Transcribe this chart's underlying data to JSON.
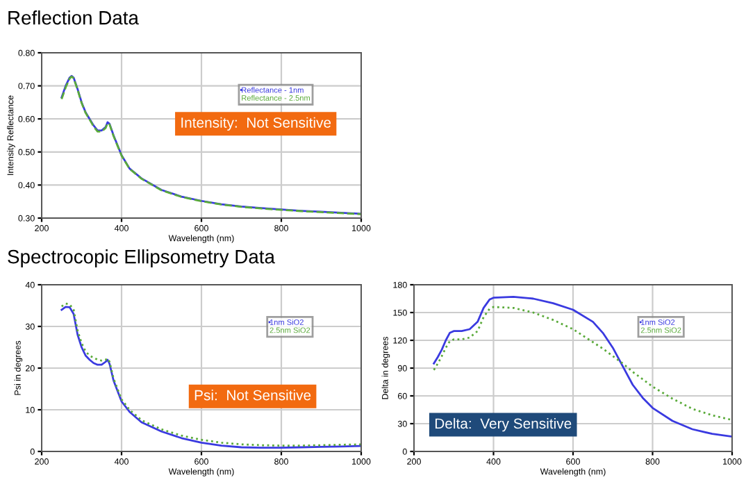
{
  "chart_data": [
    {
      "type": "line",
      "title": "Reflection Data",
      "xlabel": "Wavelength (nm)",
      "ylabel": "Intensity Reflectance",
      "x": [
        250,
        260,
        270,
        275,
        280,
        290,
        300,
        310,
        320,
        330,
        340,
        350,
        360,
        365,
        370,
        380,
        400,
        420,
        450,
        500,
        550,
        600,
        650,
        700,
        750,
        800,
        850,
        900,
        950,
        1000
      ],
      "series": [
        {
          "name": "Reflectance - 1nm",
          "color": "#3a3ae0",
          "line_style": "solid",
          "values": [
            0.665,
            0.7,
            0.725,
            0.73,
            0.725,
            0.69,
            0.65,
            0.62,
            0.6,
            0.58,
            0.565,
            0.565,
            0.575,
            0.59,
            0.585,
            0.55,
            0.49,
            0.45,
            0.42,
            0.385,
            0.365,
            0.352,
            0.342,
            0.335,
            0.33,
            0.326,
            0.322,
            0.319,
            0.316,
            0.313
          ]
        },
        {
          "name": "Reflectance - 2.5nm",
          "color": "#5aaa3a",
          "line_style": "dashed",
          "values": [
            0.66,
            0.695,
            0.722,
            0.728,
            0.723,
            0.688,
            0.648,
            0.618,
            0.598,
            0.577,
            0.562,
            0.562,
            0.572,
            0.587,
            0.583,
            0.548,
            0.489,
            0.449,
            0.419,
            0.384,
            0.364,
            0.351,
            0.341,
            0.334,
            0.329,
            0.325,
            0.321,
            0.318,
            0.315,
            0.312
          ]
        }
      ],
      "xlim": [
        200,
        1000
      ],
      "xticks": [
        200,
        400,
        600,
        800,
        1000
      ],
      "ylim": [
        0.3,
        0.8
      ],
      "yticks": [
        {
          "value": 0.3,
          "label": "0.30"
        },
        {
          "value": 0.4,
          "label": "0.40"
        },
        {
          "value": 0.5,
          "label": "0.50"
        },
        {
          "value": 0.6,
          "label": "0.60"
        },
        {
          "value": 0.7,
          "label": "0.70"
        },
        {
          "value": 0.8,
          "label": "0.80"
        }
      ],
      "grid": true,
      "legend": "top right",
      "annotations": [
        "Intensity:  Not Sensitive"
      ]
    },
    {
      "type": "line",
      "title": "Spectrocopic Ellipsometry Data",
      "xlabel": "Wavelength (nm)",
      "ylabel": "Psi in degrees",
      "x": [
        250,
        260,
        270,
        280,
        290,
        300,
        310,
        320,
        330,
        340,
        350,
        360,
        365,
        370,
        380,
        400,
        420,
        450,
        500,
        550,
        600,
        650,
        700,
        750,
        800,
        850,
        900,
        950,
        1000
      ],
      "series": [
        {
          "name": "1nm SiO2",
          "color": "#3a3ae0",
          "line_style": "solid",
          "values": [
            34,
            34.7,
            34.6,
            33,
            28,
            25,
            23,
            22,
            21.2,
            20.8,
            20.8,
            21.5,
            22,
            21,
            17,
            12,
            9.5,
            7,
            4.8,
            3.2,
            2.1,
            1.4,
            1.0,
            0.9,
            0.9,
            1.0,
            1.1,
            1.2,
            1.3
          ]
        },
        {
          "name": "2.5nm SiO2",
          "color": "#5aaa3a",
          "line_style": "dotted",
          "values": [
            34.8,
            35.5,
            35.3,
            34,
            29,
            26,
            24,
            23,
            22.5,
            22,
            21.8,
            22,
            22.3,
            21.5,
            17.5,
            12.5,
            10,
            7.5,
            5.3,
            3.8,
            2.8,
            2.1,
            1.7,
            1.5,
            1.4,
            1.4,
            1.5,
            1.6,
            1.7
          ]
        }
      ],
      "xlim": [
        200,
        1000
      ],
      "xticks": [
        200,
        400,
        600,
        800,
        1000
      ],
      "ylim": [
        0,
        40
      ],
      "yticks": [
        0,
        10,
        20,
        30,
        40
      ],
      "grid": true,
      "legend": "top right",
      "annotations": [
        "Psi:  Not Sensitive"
      ]
    },
    {
      "type": "line",
      "xlabel": "Wavelength (nm)",
      "ylabel": "Delta in degrees",
      "x": [
        250,
        260,
        270,
        280,
        290,
        300,
        320,
        340,
        360,
        375,
        390,
        400,
        450,
        500,
        550,
        600,
        650,
        675,
        700,
        725,
        750,
        775,
        800,
        850,
        900,
        950,
        1000
      ],
      "series": [
        {
          "name": "1nm SiO2",
          "color": "#3a3ae0",
          "line_style": "solid",
          "values": [
            95,
            102,
            110,
            120,
            128,
            130,
            130,
            132,
            140,
            155,
            164,
            166,
            167,
            165,
            160,
            153,
            140,
            128,
            112,
            92,
            72,
            58,
            47,
            33,
            24,
            19,
            16
          ]
        },
        {
          "name": "2.5nm SiO2",
          "color": "#5aaa3a",
          "line_style": "dotted",
          "values": [
            88,
            95,
            103,
            112,
            119,
            121,
            121,
            123,
            130,
            145,
            154,
            156,
            155,
            150,
            142,
            132,
            118,
            111,
            103,
            95,
            86,
            78,
            70,
            57,
            46,
            39,
            34
          ]
        }
      ],
      "xlim": [
        200,
        1000
      ],
      "xticks": [
        200,
        400,
        600,
        800,
        1000
      ],
      "ylim": [
        0,
        180
      ],
      "yticks": [
        0,
        30,
        60,
        90,
        120,
        150,
        180
      ],
      "grid": true,
      "legend": "top right",
      "annotations": [
        "Delta:  Very Sensitive"
      ]
    }
  ]
}
